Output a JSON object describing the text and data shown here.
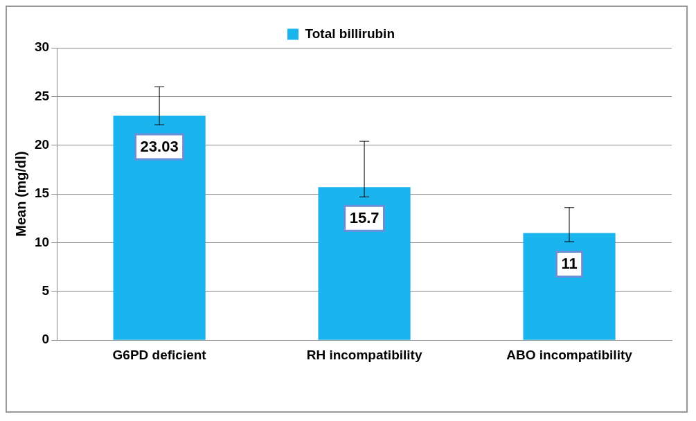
{
  "chart_data": {
    "type": "bar",
    "ylabel": "Mean (mg/dl)",
    "categories": [
      "G6PD deficient",
      "RH incompatibility",
      "ABO incompatibility"
    ],
    "series": [
      {
        "name": "Total billirubin",
        "color": "#1ab4ee",
        "values": [
          23.03,
          15.7,
          11
        ],
        "errors": [
          [
            22.1,
            26
          ],
          [
            14.7,
            20.4
          ],
          [
            10.1,
            13.6
          ]
        ]
      }
    ],
    "ylim": [
      0,
      30
    ],
    "yticks": [
      0,
      5,
      10,
      15,
      20,
      25,
      30
    ],
    "grid": "y",
    "legend": "top",
    "data_labels": true
  }
}
